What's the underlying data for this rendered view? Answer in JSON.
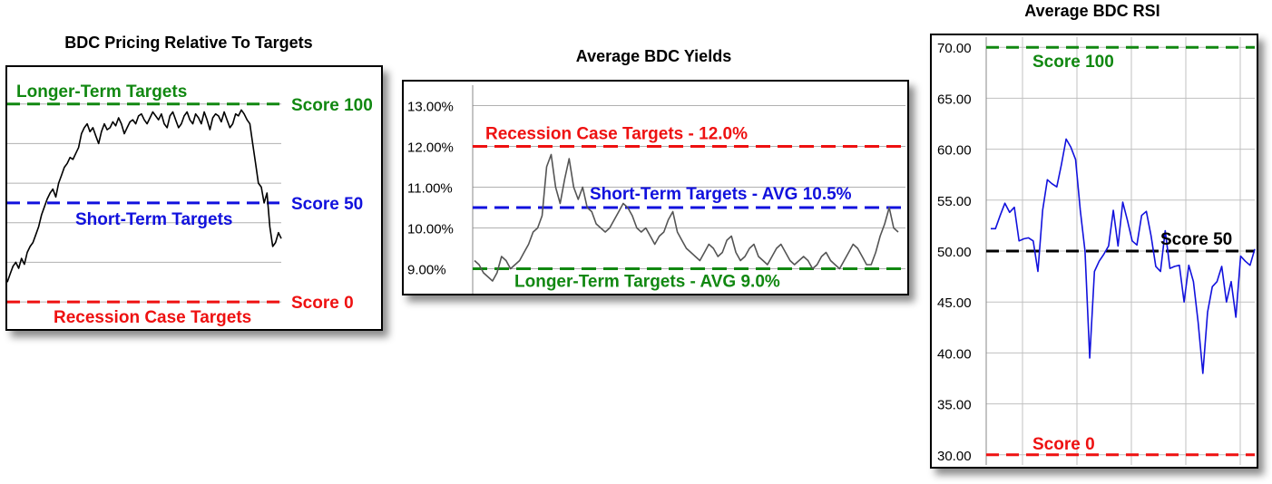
{
  "chart_data": [
    {
      "type": "line",
      "title": "BDC Pricing Relative To Targets",
      "colors": {
        "line": "#000000",
        "long_term": "#118811",
        "short_term": "#1111dd",
        "recession": "#ee1111"
      },
      "grid": "horizontal",
      "ylim": [
        -5,
        115
      ],
      "y_gridlines": [
        0,
        20,
        40,
        60,
        80,
        100
      ],
      "reference_lines": [
        {
          "name": "Longer-Term Targets",
          "score_label": "Score 100",
          "y": 100
        },
        {
          "name": "Short-Term Targets",
          "score_label": "Score 50",
          "y": 50
        },
        {
          "name": "Recession Case Targets",
          "score_label": "Score 0",
          "y": 0
        }
      ],
      "series": [
        {
          "values": [
            10,
            14,
            18,
            20,
            17,
            22,
            19,
            25,
            28,
            30,
            34,
            38,
            44,
            48,
            52,
            55,
            57,
            53,
            60,
            64,
            68,
            70,
            73,
            72,
            75,
            78,
            85,
            88,
            90,
            86,
            88,
            84,
            80,
            86,
            90,
            87,
            88,
            91,
            89,
            93,
            90,
            85,
            88,
            91,
            92,
            90,
            94,
            95,
            92,
            90,
            93,
            96,
            94,
            92,
            95,
            90,
            88,
            94,
            96,
            92,
            88,
            90,
            94,
            96,
            92,
            90,
            95,
            93,
            90,
            96,
            92,
            87,
            93,
            95,
            94,
            91,
            96,
            92,
            88,
            90,
            95,
            94,
            97,
            95,
            92,
            90,
            80,
            70,
            60,
            58,
            50,
            55,
            38,
            28,
            30,
            35,
            32
          ]
        }
      ]
    },
    {
      "type": "line",
      "title": "Average BDC Yields",
      "colors": {
        "line": "#555555",
        "long_term": "#118811",
        "short_term": "#1111dd",
        "recession": "#ee1111"
      },
      "grid": "horizontal",
      "ylim": [
        8.5,
        13.5
      ],
      "y_ticks": [
        "13.00%",
        "12.00%",
        "11.00%",
        "10.00%",
        "9.00%"
      ],
      "y_tick_values": [
        13,
        12,
        11,
        10,
        9
      ],
      "reference_lines": [
        {
          "name": "Recession Case Targets - 12.0%",
          "y": 12.0
        },
        {
          "name": "Short-Term  Targets  -   AVG 10.5%",
          "y": 10.5
        },
        {
          "name": "Longer-Term Targets - AVG 9.0%",
          "y": 9.0
        }
      ],
      "series": [
        {
          "values": [
            9.2,
            9.1,
            8.9,
            8.8,
            8.7,
            8.9,
            9.3,
            9.2,
            9.0,
            9.1,
            9.2,
            9.4,
            9.6,
            9.9,
            10.0,
            10.3,
            11.5,
            11.8,
            11.0,
            10.6,
            11.2,
            11.7,
            11.0,
            10.7,
            11.0,
            10.5,
            10.4,
            10.1,
            10.0,
            9.9,
            10.0,
            10.2,
            10.4,
            10.6,
            10.5,
            10.3,
            10.0,
            9.9,
            10.0,
            9.8,
            9.6,
            9.8,
            9.9,
            10.2,
            10.4,
            9.9,
            9.7,
            9.5,
            9.4,
            9.3,
            9.2,
            9.4,
            9.6,
            9.5,
            9.3,
            9.4,
            9.7,
            9.8,
            9.4,
            9.2,
            9.3,
            9.5,
            9.6,
            9.3,
            9.2,
            9.1,
            9.3,
            9.5,
            9.6,
            9.4,
            9.2,
            9.1,
            9.2,
            9.3,
            9.2,
            9.0,
            9.1,
            9.3,
            9.4,
            9.2,
            9.1,
            9.0,
            9.2,
            9.4,
            9.6,
            9.5,
            9.3,
            9.1,
            9.1,
            9.4,
            9.8,
            10.1,
            10.5,
            10.0,
            9.9
          ]
        }
      ]
    },
    {
      "type": "line",
      "title": "Average BDC RSI",
      "colors": {
        "line": "#1111dd",
        "long_term": "#118811",
        "short_term": "#000000",
        "recession": "#ee1111"
      },
      "grid": "both",
      "ylim": [
        29,
        71
      ],
      "y_ticks": [
        "70.00",
        "65.00",
        "60.00",
        "55.00",
        "50.00",
        "45.00",
        "40.00",
        "35.00",
        "30.00"
      ],
      "y_tick_values": [
        70,
        65,
        60,
        55,
        50,
        45,
        40,
        35,
        30
      ],
      "reference_lines": [
        {
          "name": "Score 100",
          "y": 70
        },
        {
          "name": "Score 50",
          "y": 50
        },
        {
          "name": "Score 0",
          "y": 30
        }
      ],
      "series": [
        {
          "values": [
            52.2,
            52.2,
            53.5,
            54.7,
            53.8,
            54.3,
            51.0,
            51.2,
            51.3,
            51.0,
            48.0,
            54.0,
            57.0,
            56.6,
            56.3,
            58.5,
            61.0,
            60.2,
            59.0,
            54.0,
            50.0,
            39.5,
            48.0,
            49.0,
            49.7,
            50.5,
            54.0,
            50.5,
            54.8,
            53.0,
            51.0,
            50.6,
            53.5,
            53.9,
            51.5,
            48.5,
            48.0,
            52.0,
            48.3,
            48.5,
            48.6,
            45.0,
            48.6,
            47.0,
            43.0,
            38.0,
            44.0,
            46.5,
            47.0,
            48.5,
            45.0,
            47.0,
            43.5,
            49.5,
            49.0,
            48.6,
            50.2
          ]
        }
      ]
    }
  ]
}
